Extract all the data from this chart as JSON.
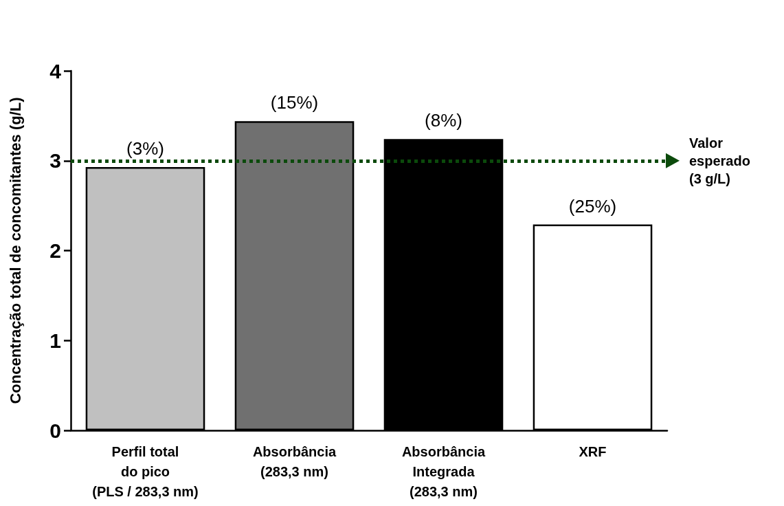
{
  "chart_data": {
    "type": "bar",
    "ylabel": "Concentração total de concomitantes (g/L)",
    "categories": [
      "Perfil total\ndo pico\n(PLS / 283,3 nm)",
      "Absorbância\n(283,3 nm)",
      "Absorbância\nIntegrada\n(283,3 nm)",
      "XRF"
    ],
    "values": [
      2.93,
      3.44,
      3.24,
      2.29
    ],
    "colors": [
      "#c0c0c0",
      "#707070",
      "#000000",
      "#ffffff"
    ],
    "annotations": [
      {
        "text": "(3%)",
        "x": "Perfil total\ndo pico\n(PLS / 283,3 nm)",
        "y": 2.93
      },
      {
        "text": "(15%)",
        "x": "Absorbância\n(283,3 nm)",
        "y": 3.44
      },
      {
        "text": "(8%)",
        "x": "Absorbância\nIntegrada\n(283,3 nm)",
        "y": 3.24
      },
      {
        "text": "(25%)",
        "x": "XRF",
        "y": 2.29
      }
    ],
    "ylim": [
      0,
      4
    ],
    "yticks": [
      0,
      1,
      2,
      3,
      4
    ],
    "grid": false,
    "ref_lines": [
      {
        "axis": "y",
        "value": 3,
        "label": "Valor\nesperado\n(3 g/L)",
        "color": "#0b4a0b",
        "line_style": "dotted"
      }
    ]
  }
}
